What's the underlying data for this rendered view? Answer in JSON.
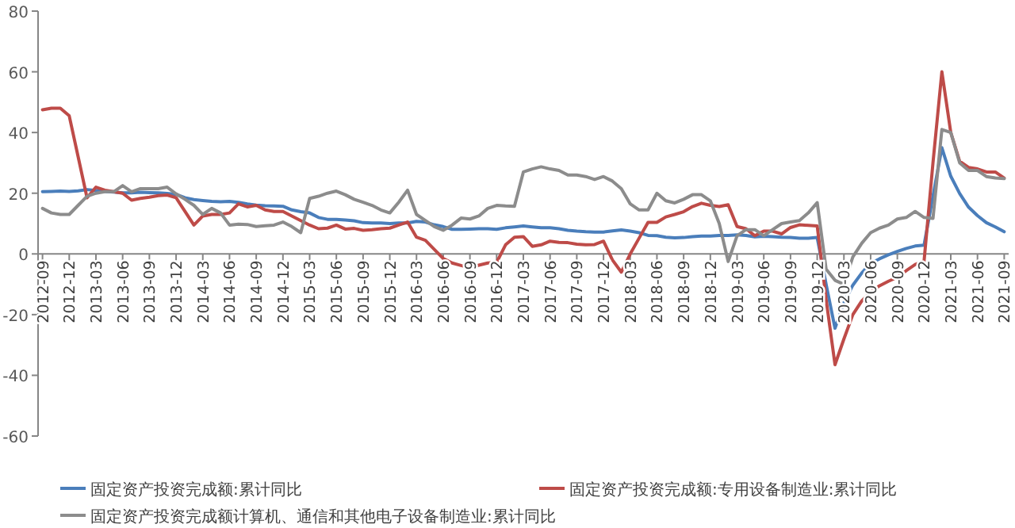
{
  "chart_data": {
    "type": "line",
    "ylim": [
      -60,
      80
    ],
    "yticks": [
      -60,
      -40,
      -20,
      0,
      20,
      40,
      60,
      80
    ],
    "grid": false,
    "legend": "bottom",
    "marker": "none",
    "line_style": "solid",
    "categories": [
      "2012-09",
      null,
      null,
      "2012-12",
      null,
      null,
      "2013-03",
      null,
      null,
      "2013-06",
      null,
      null,
      "2013-09",
      null,
      null,
      "2013-12",
      null,
      null,
      "2014-03",
      null,
      null,
      "2014-06",
      null,
      null,
      "2014-09",
      null,
      null,
      "2014-12",
      null,
      null,
      "2015-03",
      null,
      null,
      "2015-06",
      null,
      null,
      "2015-09",
      null,
      null,
      "2015-12",
      null,
      null,
      "2016-03",
      null,
      null,
      "2016-06",
      null,
      null,
      "2016-09",
      null,
      null,
      "2016-12",
      null,
      null,
      "2017-03",
      null,
      null,
      "2017-06",
      null,
      null,
      "2017-09",
      null,
      null,
      "2017-12",
      null,
      null,
      "2018-03",
      null,
      null,
      "2018-06",
      null,
      null,
      "2018-09",
      null,
      null,
      "2018-12",
      null,
      null,
      "2019-03",
      null,
      null,
      "2019-06",
      null,
      null,
      "2019-09",
      null,
      null,
      "2019-12",
      null,
      null,
      "2020-03",
      null,
      null,
      "2020-06",
      null,
      null,
      "2020-09",
      null,
      null,
      "2020-12",
      null,
      null,
      "2021-03",
      null,
      null,
      "2021-06",
      null,
      null,
      "2021-09"
    ],
    "series": [
      {
        "name": "固定资产投资完成额:累计同比",
        "color": "#4a7ebb",
        "values": [
          20.5,
          20.6,
          20.7,
          20.6,
          20.8,
          21.2,
          20.9,
          20.6,
          20.4,
          20.1,
          20.1,
          20.3,
          20.2,
          20.1,
          19.9,
          19.6,
          18.5,
          17.9,
          17.6,
          17.3,
          17.2,
          17.3,
          17.0,
          16.5,
          16.1,
          15.9,
          15.8,
          15.7,
          14.5,
          13.9,
          13.5,
          12.0,
          11.4,
          11.4,
          11.2,
          10.9,
          10.3,
          10.2,
          10.2,
          10.0,
          10.2,
          10.2,
          10.7,
          10.5,
          9.6,
          9.0,
          8.1,
          8.1,
          8.2,
          8.3,
          8.3,
          8.1,
          8.6,
          8.9,
          9.2,
          8.9,
          8.6,
          8.6,
          8.3,
          7.8,
          7.5,
          7.3,
          7.2,
          7.2,
          7.6,
          7.9,
          7.5,
          7.0,
          6.1,
          6.0,
          5.5,
          5.3,
          5.4,
          5.7,
          5.9,
          5.9,
          6.1,
          6.1,
          6.3,
          6.1,
          5.6,
          5.8,
          5.7,
          5.5,
          5.4,
          5.2,
          5.2,
          5.4,
          -10,
          -24.5,
          -16.1,
          -10.3,
          -6.3,
          -3.1,
          -1.6,
          -0.3,
          0.8,
          1.8,
          2.6,
          2.9,
          19,
          35.0,
          25.6,
          19.9,
          15.4,
          12.6,
          10.3,
          8.9,
          7.3
        ]
      },
      {
        "name": "固定资产投资完成额:专用设备制造业:累计同比",
        "color": "#be4b48",
        "values": [
          47.5,
          48,
          48,
          45.5,
          32,
          18.5,
          22,
          21,
          20.5,
          20,
          17.7,
          18.3,
          18.7,
          19.2,
          19.4,
          18.5,
          14,
          9.5,
          12.5,
          13,
          13,
          13.5,
          16.5,
          15.5,
          16,
          14.5,
          14,
          14,
          12.5,
          11,
          9.5,
          8.3,
          8.5,
          9.5,
          8.2,
          8.4,
          7.8,
          8,
          8.3,
          8.5,
          9.5,
          10.5,
          5.5,
          4.5,
          1.5,
          -1.5,
          -3,
          -3.8,
          -4.5,
          -3.7,
          -3,
          -2.8,
          3,
          5.5,
          5.7,
          2.5,
          3,
          4.2,
          3.8,
          3.7,
          3.2,
          3,
          3.1,
          4.2,
          -2,
          -6,
          0,
          5.2,
          10.4,
          10.4,
          12.2,
          13,
          13.9,
          15.6,
          16.7,
          16,
          15.6,
          16.2,
          9,
          8.3,
          6,
          7.5,
          7.5,
          6.6,
          8.7,
          9.6,
          9.4,
          9.2,
          -15,
          -36.5,
          -28,
          -20,
          -15.5,
          -12.6,
          -10.5,
          -9,
          -7.7,
          -5.5,
          -3.5,
          -2.4,
          30,
          60,
          40,
          30.5,
          28.5,
          28,
          27,
          27,
          25
        ]
      },
      {
        "name": "固定资产投资完成额计算机、通信和其他电子设备制造业:累计同比",
        "color": "#8c8c8c",
        "values": [
          15,
          13.5,
          13,
          13,
          16,
          19,
          20,
          20.5,
          20.5,
          22.5,
          20.5,
          21.5,
          21.5,
          21.5,
          22,
          19.8,
          18,
          16,
          13,
          15,
          13.5,
          9.5,
          9.8,
          9.7,
          9,
          9.3,
          9.5,
          10.5,
          9,
          7,
          18.3,
          19,
          20,
          20.7,
          19.5,
          18,
          17,
          16,
          14.5,
          13.5,
          17,
          21,
          13,
          11,
          9,
          7.8,
          9.5,
          11.8,
          11.5,
          12.5,
          15,
          16,
          15.8,
          15.7,
          27,
          28,
          28.7,
          28,
          27.5,
          26,
          26,
          25.5,
          24.5,
          25.5,
          24,
          21.5,
          16.5,
          14.5,
          14.5,
          20,
          17.5,
          16.8,
          18,
          19.5,
          19.5,
          17.5,
          10,
          -2.5,
          6,
          8,
          8,
          6,
          8,
          10,
          10.5,
          11,
          13.5,
          16.9,
          -5,
          -8.7,
          -10,
          -1,
          3.5,
          7,
          8.5,
          9.5,
          11.5,
          12,
          14,
          12,
          11.7,
          41,
          40,
          30,
          27.5,
          27.5,
          25.5,
          25,
          24.8
        ]
      }
    ]
  }
}
